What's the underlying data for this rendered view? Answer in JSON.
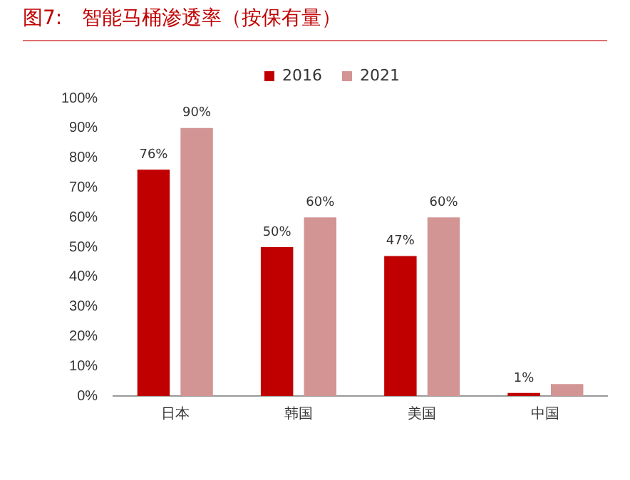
{
  "chart_data": {
    "type": "bar",
    "title": "图7:　智能马桶渗透率（按保有量）",
    "categories": [
      "日本",
      "韩国",
      "美国",
      "中国"
    ],
    "series": [
      {
        "name": "2016",
        "color": "#c00000",
        "values": [
          76,
          50,
          47,
          1
        ],
        "value_labels": [
          "76%",
          "50%",
          "47%",
          "1%"
        ]
      },
      {
        "name": "2021",
        "color": "#d39494",
        "values": [
          90,
          60,
          60,
          4
        ],
        "value_labels": [
          "90%",
          "60%",
          "60%",
          null
        ]
      }
    ],
    "ylim": [
      0,
      100
    ],
    "yticks": [
      {
        "value": 0,
        "label": "0%"
      },
      {
        "value": 10,
        "label": "10%"
      },
      {
        "value": 20,
        "label": "20%"
      },
      {
        "value": 30,
        "label": "30%"
      },
      {
        "value": 40,
        "label": "40%"
      },
      {
        "value": 50,
        "label": "50%"
      },
      {
        "value": 60,
        "label": "60%"
      },
      {
        "value": 70,
        "label": "70%"
      },
      {
        "value": 80,
        "label": "80%"
      },
      {
        "value": 90,
        "label": "90%"
      },
      {
        "value": 100,
        "label": "100%"
      }
    ],
    "grid": false,
    "legend": "top"
  }
}
